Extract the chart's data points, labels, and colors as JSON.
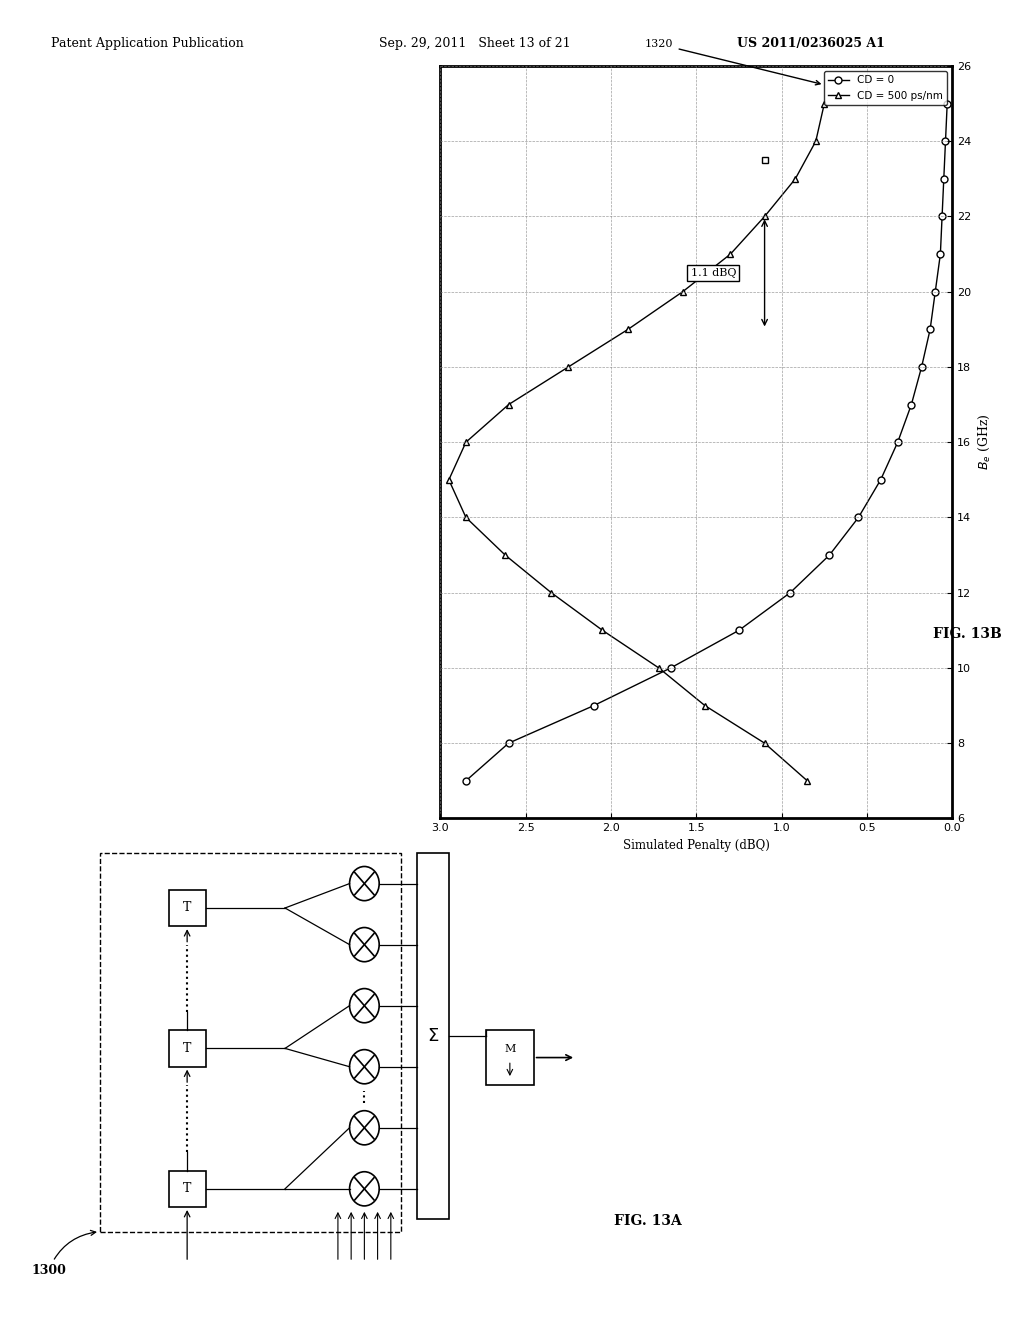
{
  "header_left": "Patent Application Publication",
  "header_mid": "Sep. 29, 2011   Sheet 13 of 21",
  "header_right": "US 2011/0236025 A1",
  "fig13b_label": "FIG. 13B",
  "fig13a_label": "FIG. 13A",
  "label_1300": "1300",
  "label_1320": "1320",
  "ylabel": "Simulated Penalty (dBQ)",
  "xlabel_full": "$B_e$ (GHz)",
  "xmin": 6,
  "xmax": 26,
  "ymin": 0,
  "ymax": 3,
  "xticks": [
    6,
    8,
    10,
    12,
    14,
    16,
    18,
    20,
    22,
    24,
    26
  ],
  "yticks": [
    0,
    0.5,
    1,
    1.5,
    2,
    2.5,
    3
  ],
  "legend_cd0": "CD = 0",
  "legend_cd500": "CD = 500 ps/nm",
  "annotation": "1.1 dBQ",
  "cd0_x": [
    7,
    8,
    9,
    10,
    11,
    12,
    13,
    14,
    15,
    16,
    17,
    18,
    19,
    20,
    21,
    22,
    23,
    24,
    25
  ],
  "cd0_y": [
    2.85,
    2.6,
    2.1,
    1.65,
    1.25,
    0.95,
    0.72,
    0.55,
    0.42,
    0.32,
    0.24,
    0.18,
    0.13,
    0.1,
    0.07,
    0.06,
    0.05,
    0.04,
    0.03
  ],
  "cd500_x": [
    7,
    8,
    9,
    10,
    11,
    12,
    13,
    14,
    15,
    16,
    17,
    18,
    19,
    20,
    21,
    22,
    23,
    24,
    25
  ],
  "cd500_y": [
    0.85,
    1.1,
    1.45,
    1.72,
    2.05,
    2.35,
    2.62,
    2.85,
    2.95,
    2.85,
    2.6,
    2.25,
    1.9,
    1.58,
    1.3,
    1.1,
    0.92,
    0.8,
    0.75
  ],
  "bg_color": "#ffffff",
  "line_color": "#000000",
  "grid_color": "#888888"
}
